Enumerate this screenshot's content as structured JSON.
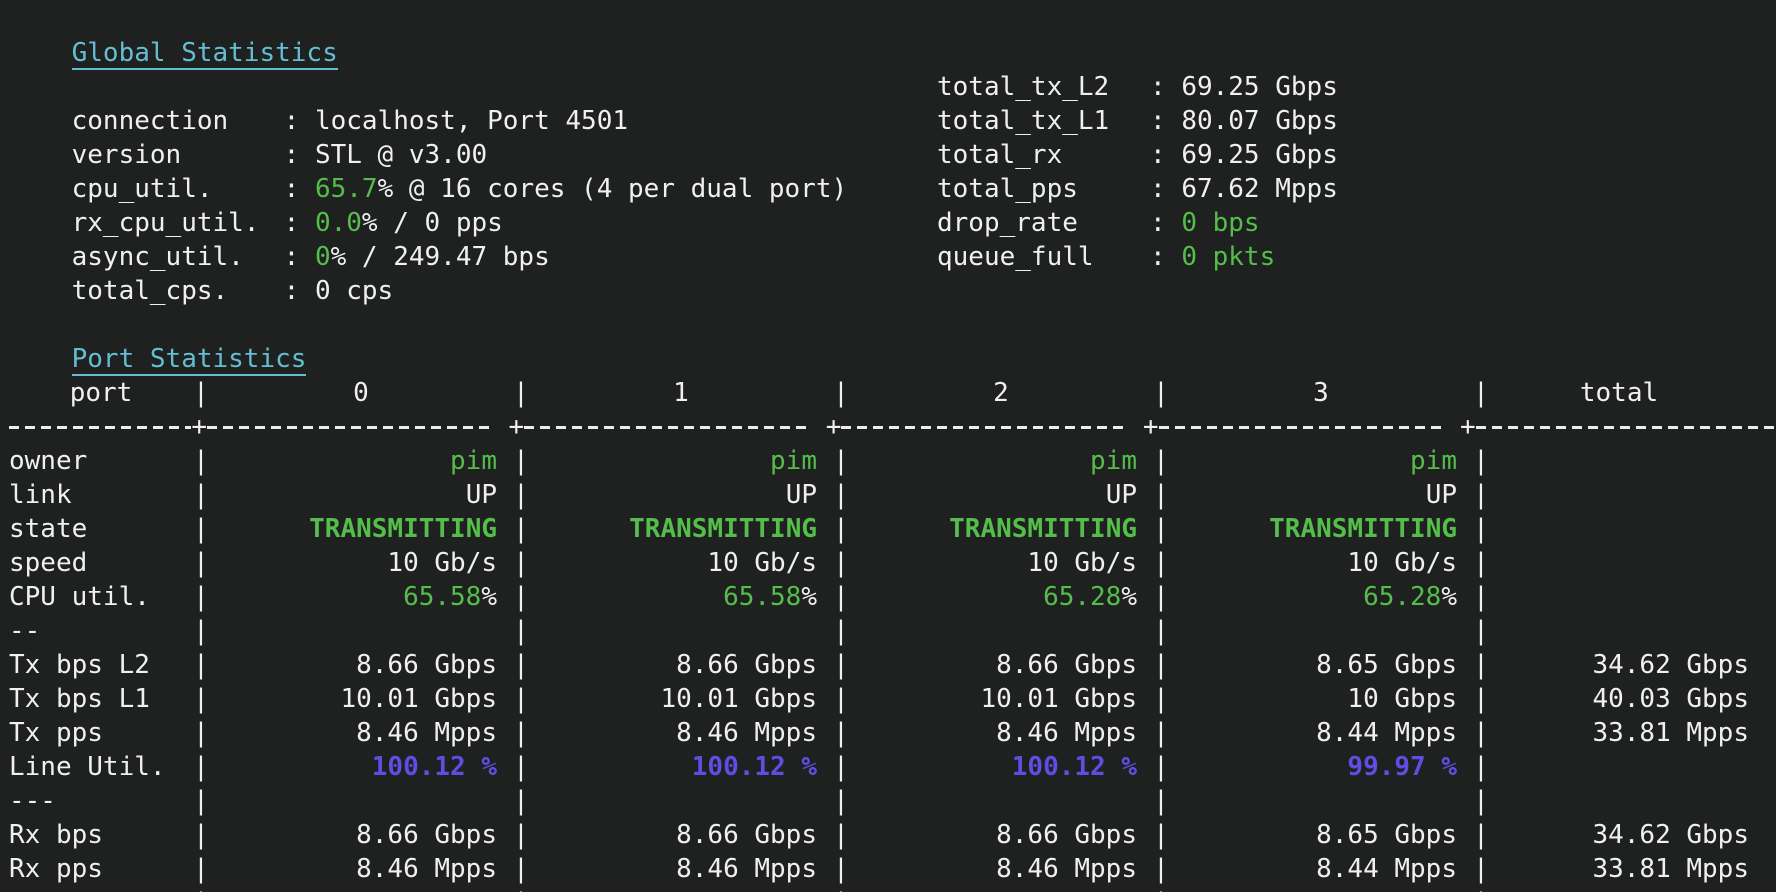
{
  "terminal": {
    "colors": {
      "background": "#1f2020",
      "foreground": "#f0f0f0",
      "heading_cyan": "#64bed2",
      "value_green": "#55be4b",
      "line_util_purple": "#5f4ee4"
    },
    "global": {
      "title": "Global Statistics",
      "colon": ": ",
      "left": [
        {
          "label": "connection",
          "white1": "localhost, Port 4501",
          "green": "",
          "white2": ""
        },
        {
          "label": "version",
          "white1": "STL @ v3.00",
          "green": "",
          "white2": ""
        },
        {
          "label": "cpu_util.",
          "white1": "",
          "green": "65.7",
          "white2": "% @ 16 cores (4 per dual port)"
        },
        {
          "label": "rx_cpu_util.",
          "white1": "",
          "green": "0.0",
          "white2": "% / 0 pps"
        },
        {
          "label": "async_util.",
          "white1": "",
          "green": "0",
          "white2": "% / 249.47 bps"
        },
        {
          "label": "total_cps.",
          "white1": "0 cps",
          "green": "",
          "white2": ""
        }
      ],
      "right": [
        {
          "label": "total_tx_L2",
          "white": "69.25 Gbps",
          "green": ""
        },
        {
          "label": "total_tx_L1",
          "white": "80.07 Gbps",
          "green": ""
        },
        {
          "label": "total_rx",
          "white": "69.25 Gbps",
          "green": ""
        },
        {
          "label": "total_pps",
          "white": "67.62 Mpps",
          "green": ""
        },
        {
          "label": "drop_rate",
          "white": "",
          "green": "0 bps"
        },
        {
          "label": "queue_full",
          "white": "",
          "green": "0 pkts"
        }
      ]
    },
    "port": {
      "title": "Port Statistics",
      "pipe": "|",
      "plus": "+",
      "headers": {
        "label": "port",
        "c0": "0",
        "c1": "1",
        "c2": "2",
        "c3": "3",
        "total": "total"
      },
      "rows": [
        {
          "label": "owner",
          "cells": [
            "pim",
            "pim",
            "pim",
            "pim"
          ],
          "total": ""
        },
        {
          "label": "link",
          "cells": [
            "UP",
            "UP",
            "UP",
            "UP"
          ],
          "total": ""
        },
        {
          "label": "state",
          "cells": [
            "TRANSMITTING",
            "TRANSMITTING",
            "TRANSMITTING",
            "TRANSMITTING"
          ],
          "total": ""
        },
        {
          "label": "speed",
          "cells": [
            "10 Gb/s",
            "10 Gb/s",
            "10 Gb/s",
            "10 Gb/s"
          ],
          "total": ""
        },
        {
          "label": "CPU util.",
          "values": [
            "65.58",
            "65.58",
            "65.28",
            "65.28"
          ],
          "suffix": "%",
          "total": ""
        },
        {
          "label": "--"
        },
        {
          "label": "Tx bps L2",
          "cells": [
            "8.66 Gbps",
            "8.66 Gbps",
            "8.66 Gbps",
            "8.65 Gbps"
          ],
          "total": "34.62 Gbps"
        },
        {
          "label": "Tx bps L1",
          "cells": [
            "10.01 Gbps",
            "10.01 Gbps",
            "10.01 Gbps",
            "10 Gbps"
          ],
          "total": "40.03 Gbps"
        },
        {
          "label": "Tx pps",
          "cells": [
            "8.46 Mpps",
            "8.46 Mpps",
            "8.46 Mpps",
            "8.44 Mpps"
          ],
          "total": "33.81 Mpps"
        },
        {
          "label": "Line Util.",
          "cells": [
            "100.12 %",
            "100.12 %",
            "100.12 %",
            "99.97 %"
          ],
          "total": ""
        },
        {
          "label": "---"
        },
        {
          "label": "Rx bps",
          "cells": [
            "8.66 Gbps",
            "8.66 Gbps",
            "8.66 Gbps",
            "8.65 Gbps"
          ],
          "total": "34.62 Gbps"
        },
        {
          "label": "Rx pps",
          "cells": [
            "8.46 Mpps",
            "8.46 Mpps",
            "8.46 Mpps",
            "8.44 Mpps"
          ],
          "total": "33.81 Mpps"
        }
      ]
    }
  }
}
